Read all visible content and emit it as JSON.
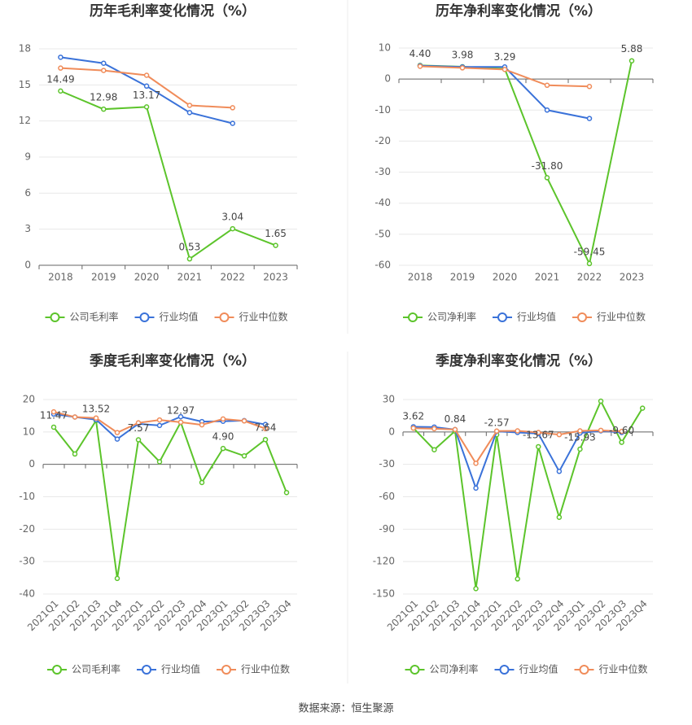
{
  "chart_data": [
    {
      "type": "line",
      "title": "历年毛利率变化情况（%）",
      "categories": [
        "2018",
        "2019",
        "2020",
        "2021",
        "2022",
        "2023"
      ],
      "ylim": [
        0,
        18
      ],
      "yticks": [
        0,
        3,
        6,
        9,
        12,
        15,
        18
      ],
      "grid": true,
      "series": [
        {
          "name": "公司毛利率",
          "color": "#5cc42b",
          "values": [
            14.49,
            12.98,
            13.17,
            0.53,
            3.04,
            1.65
          ],
          "value_labels": [
            "14.49",
            "12.98",
            "13.17",
            "0.53",
            "3.04",
            "1.65"
          ]
        },
        {
          "name": "行业均值",
          "color": "#3a72d9",
          "values": [
            17.3,
            16.8,
            14.9,
            12.7,
            11.8,
            null
          ]
        },
        {
          "name": "行业中位数",
          "color": "#f08c5a",
          "values": [
            16.4,
            16.2,
            15.8,
            13.3,
            13.1,
            null
          ]
        }
      ]
    },
    {
      "type": "line",
      "title": "历年净利率变化情况（%）",
      "categories": [
        "2018",
        "2019",
        "2020",
        "2021",
        "2022",
        "2023"
      ],
      "ylim": [
        -60,
        10
      ],
      "yticks": [
        -60,
        -50,
        -40,
        -30,
        -20,
        -10,
        0,
        10
      ],
      "grid": true,
      "series": [
        {
          "name": "公司净利率",
          "color": "#5cc42b",
          "values": [
            4.4,
            3.98,
            3.29,
            -31.8,
            -59.45,
            5.88
          ],
          "value_labels": [
            "4.40",
            "3.98",
            "3.29",
            "-31.80",
            "-59.45",
            "5.88"
          ]
        },
        {
          "name": "行业均值",
          "color": "#3a72d9",
          "values": [
            4.3,
            3.9,
            3.9,
            -10,
            -12.7,
            null
          ]
        },
        {
          "name": "行业中位数",
          "color": "#f08c5a",
          "values": [
            4.1,
            3.6,
            3.1,
            -2,
            -2.4,
            null
          ]
        }
      ]
    },
    {
      "type": "line",
      "title": "季度毛利率变化情况（%）",
      "categories": [
        "2021Q1",
        "2021Q2",
        "2021Q3",
        "2021Q4",
        "2022Q1",
        "2022Q2",
        "2022Q3",
        "2022Q4",
        "2023Q1",
        "2023Q2",
        "2023Q3",
        "2023Q4"
      ],
      "ylim": [
        -40,
        20
      ],
      "yticks": [
        -40,
        -30,
        -20,
        -10,
        0,
        10,
        20
      ],
      "grid": true,
      "series": [
        {
          "name": "公司毛利率",
          "color": "#5cc42b",
          "values": [
            11.47,
            3.2,
            13.52,
            -35.2,
            7.57,
            0.8,
            12.97,
            -5.6,
            4.9,
            2.6,
            7.64,
            -8.7
          ],
          "value_labels": [
            "11.47",
            null,
            "13.52",
            null,
            "7.57",
            null,
            "12.97",
            null,
            "4.90",
            null,
            "7.64",
            null
          ]
        },
        {
          "name": "行业均值",
          "color": "#3a72d9",
          "values": [
            15.5,
            14.6,
            13.8,
            7.8,
            12.5,
            12.0,
            14.7,
            13.2,
            13.3,
            13.5,
            12.3,
            null
          ]
        },
        {
          "name": "行业中位数",
          "color": "#f08c5a",
          "values": [
            16.2,
            14.6,
            14.3,
            9.8,
            12.8,
            13.7,
            13.0,
            12.2,
            14.0,
            13.4,
            11.0,
            null
          ]
        }
      ]
    },
    {
      "type": "line",
      "title": "季度净利率变化情况（%）",
      "categories": [
        "2021Q1",
        "2021Q2",
        "2021Q3",
        "2021Q4",
        "2022Q1",
        "2022Q2",
        "2022Q3",
        "2022Q4",
        "2023Q1",
        "2023Q2",
        "2023Q3",
        "2023Q4"
      ],
      "ylim": [
        -150,
        30
      ],
      "yticks": [
        -150,
        -120,
        -90,
        -60,
        -30,
        0,
        30
      ],
      "grid": true,
      "series": [
        {
          "name": "公司净利率",
          "color": "#5cc42b",
          "values": [
            3.62,
            -16.5,
            0.84,
            -145,
            -2.57,
            -136,
            -13.67,
            -79,
            -15.93,
            28.5,
            -9.6,
            22
          ],
          "value_labels": [
            "3.62",
            null,
            "0.84",
            null,
            "-2.57",
            null,
            "-13.67",
            null,
            "-15.93",
            null,
            "-9.60",
            null
          ]
        },
        {
          "name": "行业均值",
          "color": "#3a72d9",
          "values": [
            4.8,
            4.5,
            2.2,
            -52,
            0.5,
            -0.5,
            -1.5,
            -36.5,
            -1,
            1,
            -0.5,
            null
          ]
        },
        {
          "name": "行业中位数",
          "color": "#f08c5a",
          "values": [
            3.5,
            3.0,
            2.2,
            -29,
            0.8,
            1,
            -0.5,
            -2.5,
            1,
            1.5,
            0.5,
            null
          ]
        }
      ]
    }
  ],
  "source": "数据来源：恒生聚源"
}
